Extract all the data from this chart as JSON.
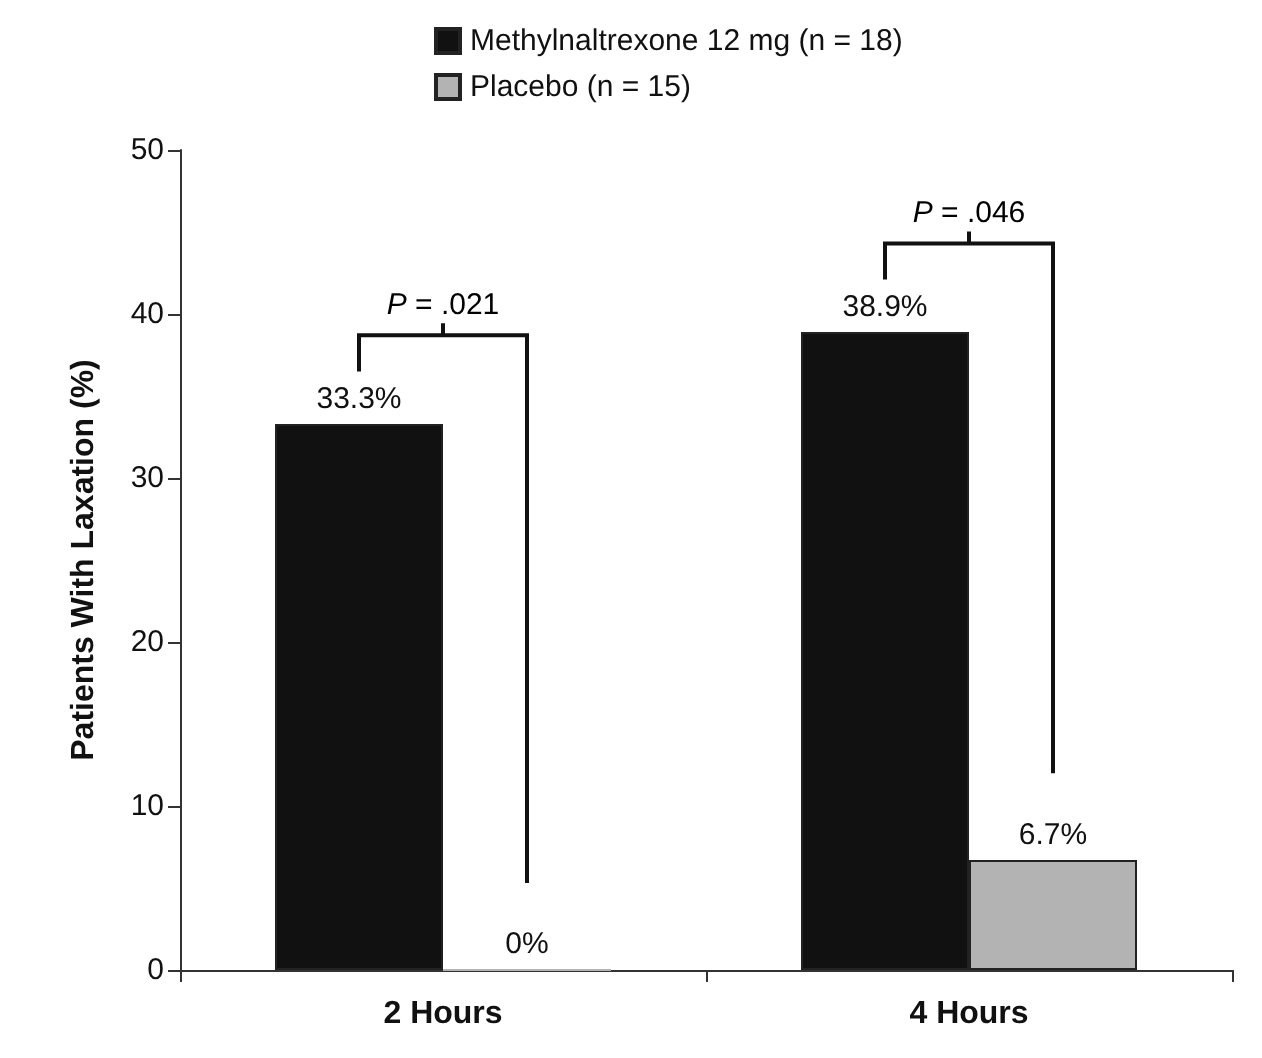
{
  "chart_data": {
    "type": "bar",
    "ylabel": "Patients With Laxation (%)",
    "categories": [
      "2 Hours",
      "4 Hours"
    ],
    "series": [
      {
        "name": "Methylnaltrexone 12 mg (n = 18)",
        "color": "#111111",
        "values": [
          33.3,
          38.9
        ],
        "value_labels": [
          "33.3%",
          "38.9%"
        ]
      },
      {
        "name": "Placebo (n = 15)",
        "color": "#b3b3b3",
        "values": [
          0,
          6.7
        ],
        "value_labels": [
          "0%",
          "6.7%"
        ]
      }
    ],
    "ylim": [
      0,
      50
    ],
    "yticks": [
      0,
      10,
      20,
      30,
      40,
      50
    ],
    "grid": false,
    "legend": "top",
    "annotations": [
      "P = .021",
      "P = .046"
    ]
  }
}
